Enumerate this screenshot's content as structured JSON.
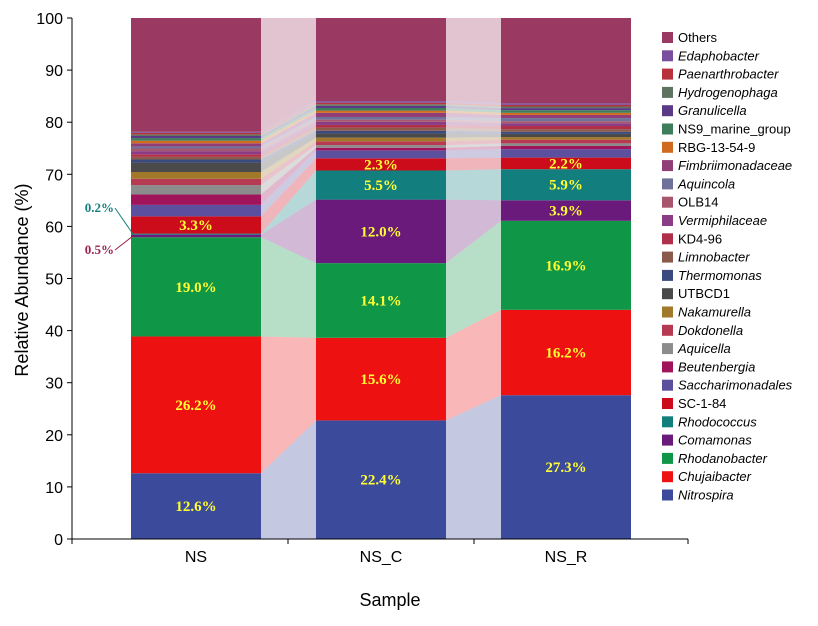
{
  "chart_data": {
    "type": "bar",
    "stacked": true,
    "xlabel": "Sample",
    "ylabel": "Relative Abundance (%)",
    "ylim": [
      0,
      100
    ],
    "yticks": [
      0,
      10,
      20,
      30,
      40,
      50,
      60,
      70,
      80,
      90,
      100
    ],
    "categories": [
      "NS",
      "NS_C",
      "NS_R"
    ],
    "series": [
      {
        "name": "Nitrospira",
        "italic": true,
        "color": "#3b4a9a",
        "values": [
          12.6,
          22.4,
          27.3
        ]
      },
      {
        "name": "Chujaibacter",
        "italic": true,
        "color": "#ee1111",
        "values": [
          26.2,
          15.6,
          16.2
        ]
      },
      {
        "name": "Rhodanobacter",
        "italic": true,
        "color": "#0f9646",
        "values": [
          19.0,
          14.1,
          16.9
        ]
      },
      {
        "name": "Comamonas",
        "italic": true,
        "color": "#6a1a7a",
        "values": [
          0.5,
          12.0,
          3.9
        ]
      },
      {
        "name": "Rhodococcus",
        "italic": true,
        "color": "#127f7e",
        "values": [
          0.2,
          5.5,
          5.9
        ]
      },
      {
        "name": "SC-1-84",
        "italic": false,
        "color": "#cc0b1b",
        "values": [
          3.3,
          2.3,
          2.2
        ]
      },
      {
        "name": "Saccharimonadales",
        "italic": true,
        "color": "#5c4f9e",
        "values": [
          2.2,
          1.5,
          1.6
        ]
      },
      {
        "name": "Beutenbergia",
        "italic": true,
        "color": "#a0145c",
        "values": [
          2.0,
          0.5,
          0.6
        ]
      },
      {
        "name": "Aquicella",
        "italic": true,
        "color": "#8c8c8c",
        "values": [
          1.8,
          0.5,
          0.5
        ]
      },
      {
        "name": "Dokdonella",
        "italic": true,
        "color": "#b53a52",
        "values": [
          1.2,
          0.7,
          0.7
        ]
      },
      {
        "name": "Nakamurella",
        "italic": true,
        "color": "#a2782a",
        "values": [
          1.3,
          0.7,
          0.5
        ]
      },
      {
        "name": "UTBCD1",
        "italic": false,
        "color": "#4a4a4a",
        "values": [
          1.8,
          0.8,
          0.6
        ]
      },
      {
        "name": "Thermomonas",
        "italic": true,
        "color": "#3a4a7e",
        "values": [
          0.6,
          0.5,
          0.4
        ]
      },
      {
        "name": "Limnobacter",
        "italic": true,
        "color": "#8b5a4a",
        "values": [
          0.5,
          0.6,
          0.5
        ]
      },
      {
        "name": "KD4-96",
        "italic": false,
        "color": "#b0304a",
        "values": [
          0.5,
          0.5,
          0.6
        ]
      },
      {
        "name": "Vermiphilaceae",
        "italic": true,
        "color": "#8a3d86",
        "values": [
          0.6,
          0.6,
          0.5
        ]
      },
      {
        "name": "OLB14",
        "italic": false,
        "color": "#a8566c",
        "values": [
          0.5,
          0.4,
          0.4
        ]
      },
      {
        "name": "Aquincola",
        "italic": true,
        "color": "#6e7299",
        "values": [
          0.4,
          0.5,
          0.6
        ]
      },
      {
        "name": "Fimbriimonadaceae",
        "italic": true,
        "color": "#903d78",
        "values": [
          0.6,
          0.8,
          0.6
        ]
      },
      {
        "name": "RBG-13-54-9",
        "italic": false,
        "color": "#d06a1e",
        "values": [
          0.5,
          0.4,
          0.4
        ]
      },
      {
        "name": "NS9_marine_group",
        "italic": false,
        "color": "#3e7d5a",
        "values": [
          0.5,
          0.5,
          0.5
        ]
      },
      {
        "name": "Granulicella",
        "italic": true,
        "color": "#5a3a86",
        "values": [
          0.4,
          0.4,
          0.4
        ]
      },
      {
        "name": "Hydrogenophaga",
        "italic": true,
        "color": "#5f7460",
        "values": [
          0.3,
          0.3,
          0.3
        ]
      },
      {
        "name": "Paenarthrobacter",
        "italic": true,
        "color": "#b8323c",
        "values": [
          0.3,
          0.3,
          0.3
        ]
      },
      {
        "name": "Edaphobacter",
        "italic": true,
        "color": "#7a4e9e",
        "values": [
          0.2,
          0.3,
          0.3
        ]
      },
      {
        "name": "Others",
        "italic": false,
        "color": "#9a3a62",
        "values": [
          21.8,
          15.7,
          16.2
        ]
      }
    ],
    "data_labels": [
      {
        "series": "Nitrospira",
        "texts": [
          "12.6%",
          "22.4%",
          "27.3%"
        ]
      },
      {
        "series": "Chujaibacter",
        "texts": [
          "26.2%",
          "15.6%",
          "16.2%"
        ]
      },
      {
        "series": "Rhodanobacter",
        "texts": [
          "19.0%",
          "14.1%",
          "16.9%"
        ]
      },
      {
        "series": "Comamonas",
        "texts": [
          "",
          "12.0%",
          "3.9%"
        ]
      },
      {
        "series": "Rhodococcus",
        "texts": [
          "",
          "5.5%",
          "5.9%"
        ]
      },
      {
        "series": "SC-1-84",
        "texts": [
          "3.3%",
          "2.3%",
          "2.2%"
        ]
      }
    ],
    "callouts": [
      {
        "text": "0.2%",
        "series": "Rhodococcus",
        "category": "NS",
        "color": "#127f7e"
      },
      {
        "text": "0.5%",
        "series": "Comamonas",
        "category": "NS",
        "color": "#9b2050"
      }
    ],
    "legend_order": [
      "Others",
      "Edaphobacter",
      "Paenarthrobacter",
      "Hydrogenophaga",
      "Granulicella",
      "NS9_marine_group",
      "RBG-13-54-9",
      "Fimbriimonadaceae",
      "Aquincola",
      "OLB14",
      "Vermiphilaceae",
      "KD4-96",
      "Limnobacter",
      "Thermomonas",
      "UTBCD1",
      "Nakamurella",
      "Dokdonella",
      "Aquicella",
      "Beutenbergia",
      "Saccharimonadales",
      "SC-1-84",
      "Rhodococcus",
      "Comamonas",
      "Rhodanobacter",
      "Chujaibacter",
      "Nitrospira"
    ],
    "legend_position": "right",
    "grid": false
  }
}
